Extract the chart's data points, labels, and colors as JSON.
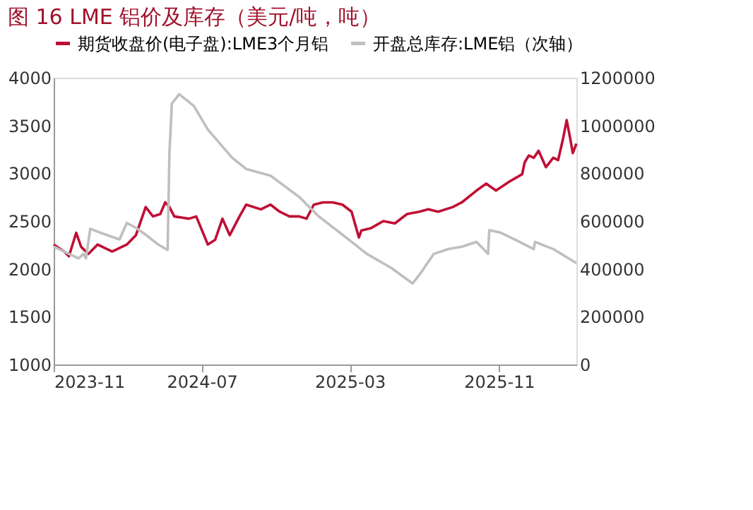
{
  "chart_data": {
    "type": "line",
    "title": "图 16 LME 铝价及库存（美元/吨，吨）",
    "xlim": [
      "2023-11-01",
      "2026-03-08"
    ],
    "xticks": [
      "2023-11",
      "2024-07",
      "2025-03",
      "2025-11"
    ],
    "ylim": [
      1000,
      4000
    ],
    "yticks": [
      1000,
      1500,
      2000,
      2500,
      3000,
      3500,
      4000
    ],
    "y2lim": [
      0,
      1200000
    ],
    "y2ticks": [
      0,
      200000,
      400000,
      600000,
      800000,
      1000000,
      1200000
    ],
    "grid": false,
    "legend": "top",
    "series": [
      {
        "name": "期货收盘价(电子盘):LME3个月铝",
        "color": "#c00f35",
        "x": [
          "2023-11-01",
          "2023-11-18",
          "2023-11-26",
          "2023-12-08",
          "2023-12-16",
          "2023-12-28",
          "2024-01-12",
          "2024-02-05",
          "2024-02-29",
          "2024-03-15",
          "2024-03-31",
          "2024-04-12",
          "2024-04-24",
          "2024-05-02",
          "2024-05-09",
          "2024-05-17",
          "2024-06-10",
          "2024-06-22",
          "2024-07-11",
          "2024-07-23",
          "2024-08-04",
          "2024-08-16",
          "2024-09-01",
          "2024-09-12",
          "2024-10-06",
          "2024-10-22",
          "2024-11-06",
          "2024-11-22",
          "2024-12-08",
          "2024-12-20",
          "2025-01-01",
          "2025-01-16",
          "2025-02-01",
          "2025-02-17",
          "2025-03-04",
          "2025-03-16",
          "2025-03-20",
          "2025-04-05",
          "2025-04-25",
          "2025-05-14",
          "2025-06-03",
          "2025-06-23",
          "2025-07-08",
          "2025-07-24",
          "2025-08-17",
          "2025-09-01",
          "2025-09-25",
          "2025-10-11",
          "2025-10-27",
          "2025-11-19",
          "2025-12-09",
          "2025-12-13",
          "2025-12-20",
          "2025-12-28",
          "2026-01-05",
          "2026-01-17",
          "2026-01-29",
          "2026-02-06",
          "2026-02-14",
          "2026-02-20",
          "2026-02-26",
          "2026-03-02",
          "2026-03-08"
        ],
        "values": [
          2255,
          2182,
          2133,
          2378,
          2231,
          2157,
          2255,
          2182,
          2255,
          2353,
          2647,
          2549,
          2574,
          2696,
          2647,
          2549,
          2525,
          2549,
          2255,
          2304,
          2525,
          2353,
          2549,
          2672,
          2623,
          2672,
          2598,
          2549,
          2549,
          2525,
          2672,
          2696,
          2696,
          2672,
          2598,
          2329,
          2402,
          2427,
          2500,
          2476,
          2574,
          2598,
          2623,
          2598,
          2647,
          2696,
          2819,
          2892,
          2819,
          2917,
          2990,
          3113,
          3187,
          3162,
          3236,
          3064,
          3162,
          3138,
          3359,
          3556,
          3359,
          3211,
          3310
        ]
      },
      {
        "name": "开盘总库存:LME铝（次轴）",
        "color": "#bfbfbf",
        "axis": "y2",
        "x": [
          "2023-11-01",
          "2023-11-26",
          "2023-12-12",
          "2023-12-20",
          "2023-12-24",
          "2023-12-31",
          "2024-01-16",
          "2024-02-17",
          "2024-02-29",
          "2024-03-15",
          "2024-03-31",
          "2024-04-20",
          "2024-05-06",
          "2024-05-09",
          "2024-05-13",
          "2024-05-25",
          "2024-06-18",
          "2024-07-11",
          "2024-08-20",
          "2024-09-12",
          "2024-10-22",
          "2024-12-08",
          "2025-01-08",
          "2025-02-17",
          "2025-03-29",
          "2025-05-08",
          "2025-06-12",
          "2025-06-23",
          "2025-07-17",
          "2025-08-10",
          "2025-09-01",
          "2025-09-25",
          "2025-10-14",
          "2025-10-16",
          "2025-11-03",
          "2025-11-27",
          "2025-12-28",
          "2025-12-30",
          "2026-01-29",
          "2026-03-08"
        ],
        "values": [
          493000,
          463000,
          444000,
          463000,
          444000,
          568000,
          552000,
          523000,
          592000,
          572000,
          543000,
          503000,
          479000,
          885000,
          1092000,
          1131000,
          1082000,
          983000,
          865000,
          818000,
          790000,
          701000,
          622000,
          543000,
          463000,
          404000,
          339000,
          374000,
          463000,
          483000,
          493000,
          513000,
          463000,
          562000,
          552000,
          523000,
          483000,
          513000,
          483000,
          424000
        ]
      }
    ]
  }
}
